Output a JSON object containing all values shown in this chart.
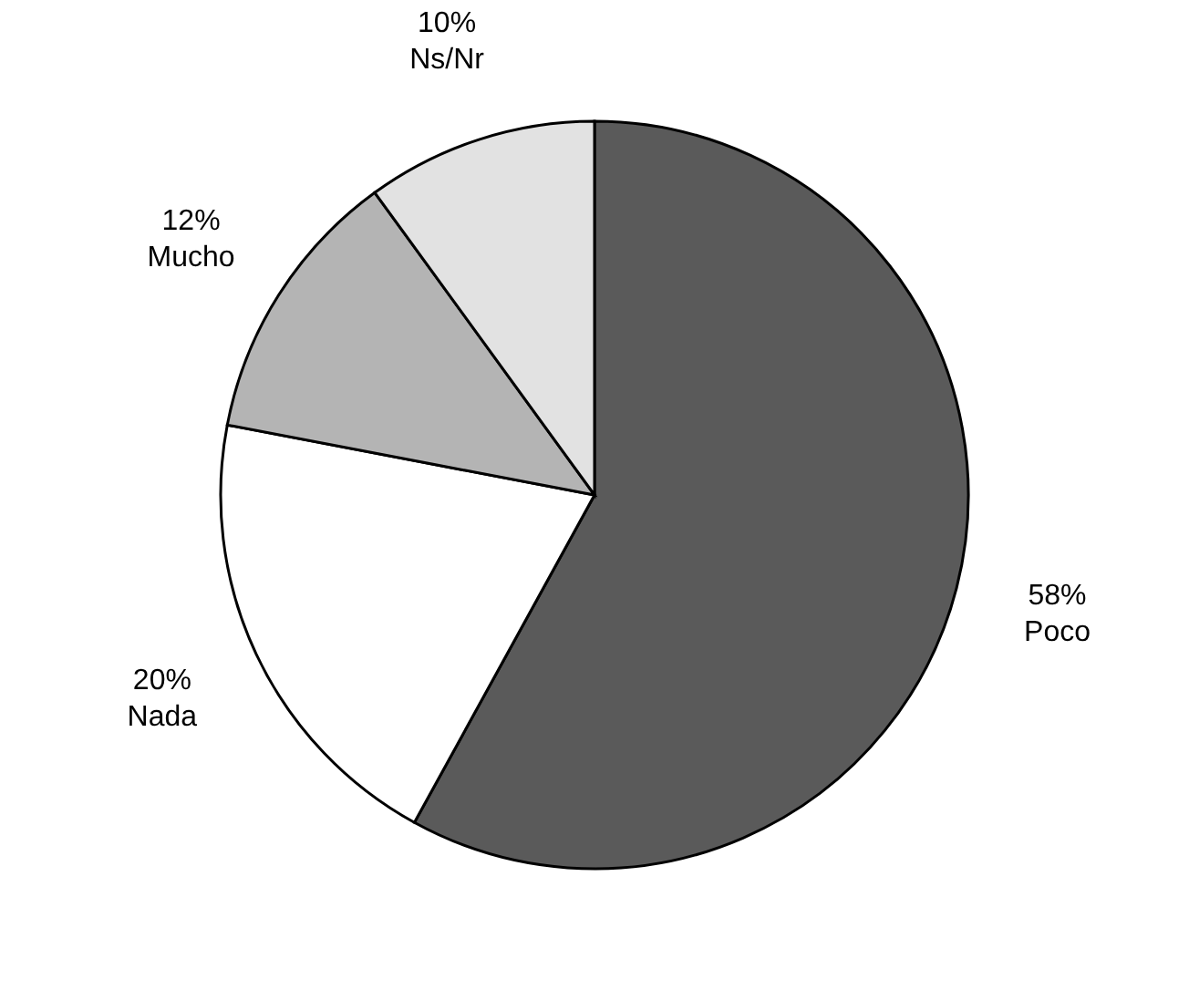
{
  "chart_data": {
    "type": "pie",
    "categories": [
      "Poco",
      "Nada",
      "Mucho",
      "Ns/Nr"
    ],
    "values": [
      58,
      20,
      12,
      10
    ],
    "value_labels": [
      "58%",
      "20%",
      "12%",
      "10%"
    ],
    "colors": [
      "#5a5a5a",
      "#ffffff",
      "#b4b4b4",
      "#e2e2e2"
    ],
    "legend": false
  }
}
